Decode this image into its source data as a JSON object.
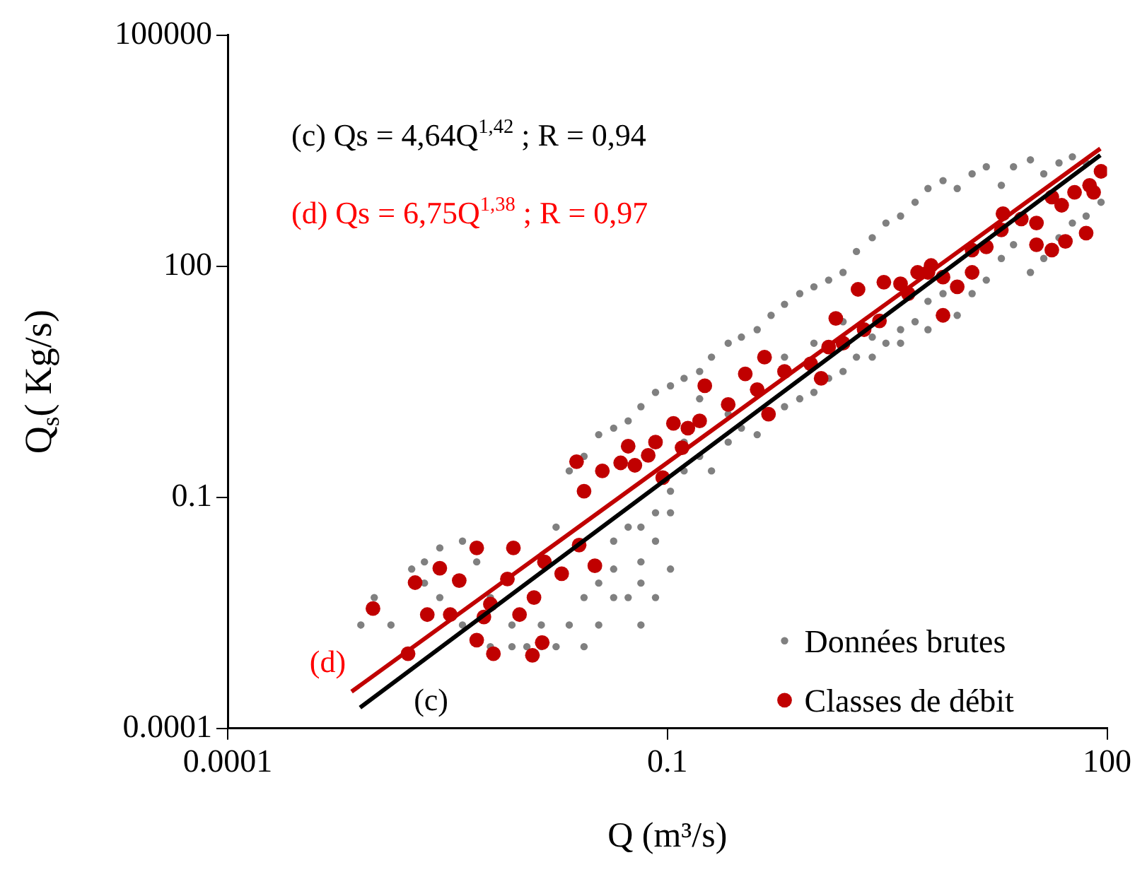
{
  "chart_data": {
    "type": "scatter",
    "xlabel": "Q (m³/s)",
    "ylabel": "Q$_{s}$( Kg/s)",
    "log": "xy",
    "xlim": [
      0.0001,
      100
    ],
    "ylim": [
      0.0001,
      100000
    ],
    "xticks": [
      0.0001,
      0.1,
      100
    ],
    "yticks": [
      0.0001,
      0.1,
      100,
      100000
    ],
    "grid": false,
    "legend": "bottom right",
    "marker": "circle",
    "annotations": [
      "(c) Qs = 4,64Q$^{1,42}$ ; R = 0,94",
      "(d) Qs = 6,75Q$^{1,38}$ ; R = 0,97"
    ],
    "series": [
      {
        "name": "Données brutes",
        "color": "#808080",
        "x": [
          0.00081,
          0.001,
          0.0013,
          0.0018,
          0.0022,
          0.0028,
          0.004,
          0.005,
          0.0062,
          0.0087,
          0.011,
          0.0138,
          0.0174,
          0.0214,
          0.027,
          0.034,
          0.043,
          0.043,
          0.054,
          0.066,
          0.066,
          0.083,
          0.105,
          0.105,
          0.0174,
          0.0214,
          0.027,
          0.034,
          0.043,
          0.054,
          0.066,
          0.083,
          0.105,
          0.13,
          0.166,
          0.2,
          0.26,
          0.32,
          0.41,
          0.51,
          0.63,
          0.8,
          1.0,
          1.26,
          1.58,
          1.95,
          2.5,
          3.1,
          3.9,
          4.9,
          6.0,
          7.6,
          9.5,
          12,
          15,
          19,
          23,
          30,
          37,
          47,
          58,
          72,
          0.13,
          0.166,
          0.2,
          0.26,
          0.32,
          0.41,
          0.63,
          0.8,
          1.0,
          1.26,
          1.58,
          1.95,
          2.5,
          3.1,
          3.9,
          4.9,
          6.0,
          7.6,
          9.5,
          12,
          15,
          19,
          23,
          30,
          37,
          47,
          58,
          72,
          91,
          6.0,
          3.9,
          2.5,
          1.58,
          1.0,
          0.63,
          0.26,
          0.166,
          0.13,
          0.083,
          0.066,
          0.043,
          0.034,
          0.027,
          0.0138,
          0.0087,
          0.0062,
          0.004,
          0.0028,
          0.0022,
          0.054,
          0.066,
          0.083,
          0.105
        ],
        "values": [
          0.0022,
          0.005,
          0.0022,
          0.0117,
          0.0145,
          0.022,
          0.027,
          0.0145,
          0.005,
          0.0022,
          0.00115,
          0.0022,
          0.00115,
          0.0022,
          0.005,
          0.0077,
          0.0117,
          0.027,
          0.041,
          0.0145,
          0.0077,
          0.027,
          0.063,
          0.12,
          0.041,
          0.22,
          0.34,
          0.65,
          0.79,
          0.98,
          1.5,
          2.3,
          2.8,
          3.5,
          4.3,
          6.6,
          10,
          12,
          15,
          23,
          32,
          44,
          54,
          66,
          83,
          155,
          234,
          363,
          447,
          676,
          1020,
          1290,
          1020,
          1580,
          1950,
          1120,
          1950,
          2400,
          1580,
          2190,
          2630,
          2190,
          0.22,
          0.34,
          0.22,
          0.52,
          0.79,
          0.65,
          1.5,
          1.9,
          2.3,
          3.5,
          4.3,
          6.6,
          6.6,
          10,
          15,
          19,
          35,
          44,
          23,
          44,
          66,
          126,
          190,
          83,
          126,
          234,
          363,
          447,
          676,
          15,
          10,
          12,
          19,
          10,
          6.6,
          1.2,
          1.9,
          0.52,
          0.063,
          0.041,
          0.005,
          0.0022,
          0.00115,
          0.00115,
          0.00115,
          0.00115,
          0.0022,
          0.005,
          0.0077,
          0.005,
          0.0022,
          0.005,
          0.0117
        ]
      },
      {
        "name": "Classes de débit",
        "color": "#c00000",
        "x": [
          0.00098,
          0.0019,
          0.0028,
          0.0038,
          0.005,
          0.0065,
          0.012,
          0.0098,
          0.0089,
          0.0145,
          0.019,
          0.025,
          0.032,
          0.027,
          0.024,
          0.036,
          0.048,
          0.054,
          0.06,
          0.074,
          0.093,
          0.083,
          0.11,
          0.126,
          0.138,
          0.166,
          0.18,
          0.26,
          0.34,
          0.41,
          0.49,
          0.63,
          0.95,
          1.26,
          1.41,
          1.58,
          2.2,
          2.8,
          2.0,
          3.0,
          3.9,
          5.1,
          6.0,
          7.6,
          9.5,
          12,
          15,
          19.5,
          26,
          33,
          42,
          52,
          60,
          91,
          76,
          81,
          42,
          19,
          12,
          7.6,
          33,
          49,
          72,
          6.3,
          4.4,
          1.12,
          0.46,
          0.0017,
          0.0023,
          0.0033,
          0.0056,
          0.014,
          0.0081,
          0.005,
          0.0123,
          0.0062
        ],
        "values": [
          0.0036,
          0.0078,
          0.012,
          0.0083,
          0.0014,
          0.00093,
          0.00089,
          0.003,
          0.022,
          0.0145,
          0.0102,
          0.024,
          0.0129,
          0.12,
          0.29,
          0.22,
          0.28,
          0.46,
          0.26,
          0.35,
          0.18,
          0.52,
          0.91,
          0.44,
          0.79,
          0.98,
          2.8,
          1.6,
          4.0,
          2.5,
          1.2,
          4.3,
          5.4,
          8.9,
          21,
          10,
          15,
          19.5,
          50,
          62,
          59,
          83,
          83,
          72,
          54,
          162,
          178,
          480,
          410,
          190,
          162,
          210,
          910,
          1700,
          1120,
          910,
          790,
          295,
          83,
          23,
          363,
          617,
          269,
          102,
          44,
          3.5,
          6.6,
          0.00093,
          0.003,
          0.003,
          0.0028,
          0.0013,
          0.0087,
          0.022,
          0.005,
          0.0041
        ]
      },
      {
        "name": "(c)",
        "type": "line",
        "marker": "none",
        "color": "#000000",
        "x": [
          0.0008,
          90
        ],
        "values": [
          0.000186,
          2760
        ]
      },
      {
        "name": "(d)",
        "type": "line",
        "marker": "none",
        "color": "#c00000",
        "x": [
          0.0007,
          90
        ],
        "values": [
          0.0003,
          3360
        ]
      }
    ]
  }
}
